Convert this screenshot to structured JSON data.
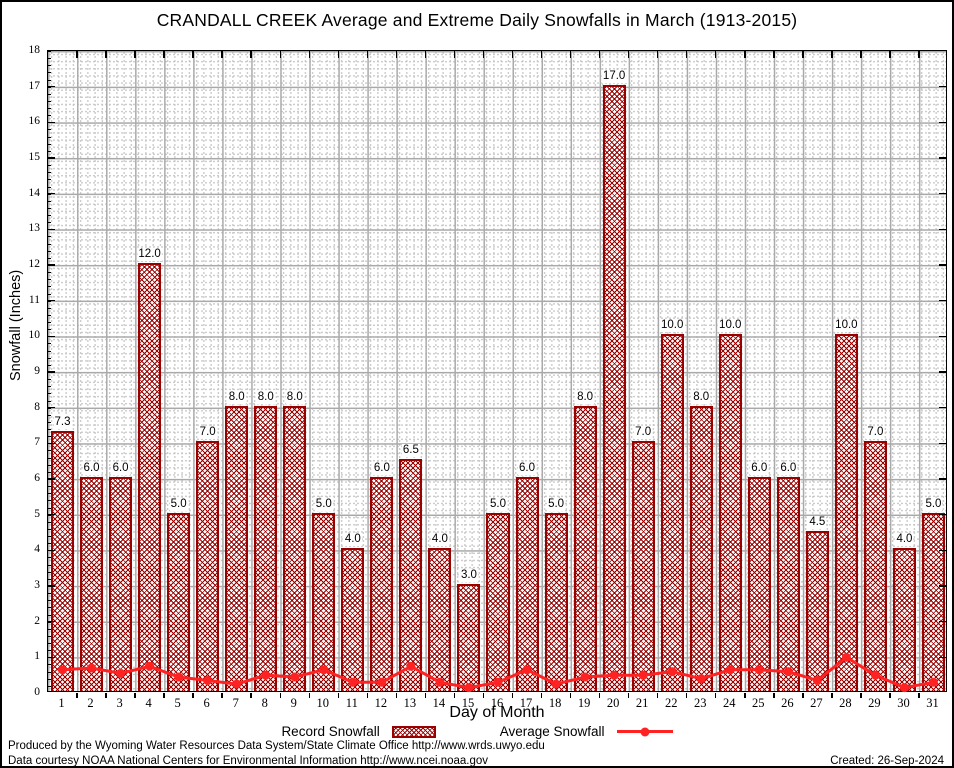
{
  "title": "CRANDALL CREEK Average and Extreme Daily Snowfalls in March (1913-2015)",
  "chart_data": {
    "type": "bar",
    "subtype": "bar+line combo",
    "categories": [
      1,
      2,
      3,
      4,
      5,
      6,
      7,
      8,
      9,
      10,
      11,
      12,
      13,
      14,
      15,
      16,
      17,
      18,
      19,
      20,
      21,
      22,
      23,
      24,
      25,
      26,
      27,
      28,
      29,
      30,
      31
    ],
    "series": [
      {
        "name": "Record Snowfall",
        "type": "bar",
        "values": [
          7.3,
          6.0,
          6.0,
          12.0,
          5.0,
          7.0,
          8.0,
          8.0,
          8.0,
          5.0,
          4.0,
          6.0,
          6.5,
          4.0,
          3.0,
          5.0,
          6.0,
          5.0,
          8.0,
          17.0,
          7.0,
          10.0,
          8.0,
          10.0,
          6.0,
          6.0,
          4.5,
          10.0,
          7.0,
          4.0,
          5.0
        ]
      },
      {
        "name": "Average Snowfall",
        "type": "line",
        "values": [
          0.65,
          0.7,
          0.55,
          0.75,
          0.45,
          0.35,
          0.25,
          0.5,
          0.45,
          0.65,
          0.3,
          0.3,
          0.75,
          0.3,
          0.15,
          0.3,
          0.65,
          0.25,
          0.45,
          0.5,
          0.5,
          0.6,
          0.4,
          0.65,
          0.65,
          0.6,
          0.35,
          1.0,
          0.5,
          0.15,
          0.3
        ]
      }
    ],
    "title": "CRANDALL CREEK Average and Extreme Daily Snowfalls in March (1913-2015)",
    "xlabel": "Day of Month",
    "ylabel": "Snowfall (Inches)",
    "ylim": [
      0,
      18
    ],
    "ytick_step": 1,
    "grid": "major solid + minor dotted",
    "legend_position": "bottom",
    "bar_value_labels": true
  },
  "legend": {
    "record_label": "Record Snowfall",
    "average_label": "Average Snowfall"
  },
  "footer": {
    "line1": "Produced by the Wyoming Water Resources Data System/State Climate Office http://www.wrds.uwyo.edu",
    "line2": "Data courtesy NOAA National Centers for Environmental Information http://www.ncei.noaa.gov",
    "created": "Created: 26-Sep-2024"
  },
  "colors": {
    "bar": "#990000",
    "line": "#ff2222",
    "grid_major": "#a9a9a9",
    "grid_minor": "#c6c6c6"
  }
}
